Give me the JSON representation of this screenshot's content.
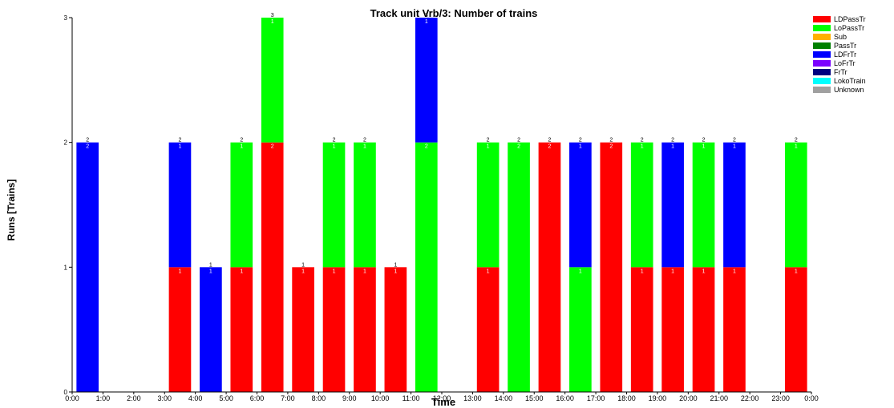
{
  "chart_data": {
    "type": "bar",
    "stacked": true,
    "title": "Track unit Vrb/3: Number of trains",
    "xlabel": "Time",
    "ylabel": "Runs [Trains]",
    "ylim": [
      0,
      3
    ],
    "yticks": [
      "0",
      "1",
      "2",
      "3"
    ],
    "grid": false,
    "legend_position": "top-right",
    "categories": [
      "0:00",
      "1:00",
      "2:00",
      "3:00",
      "4:00",
      "5:00",
      "6:00",
      "7:00",
      "8:00",
      "9:00",
      "10:00",
      "11:00",
      "12:00",
      "13:00",
      "14:00",
      "15:00",
      "16:00",
      "17:00",
      "18:00",
      "19:00",
      "20:00",
      "21:00",
      "22:00",
      "23:00"
    ],
    "xtick_labels": [
      "0:00",
      "1:00",
      "2:00",
      "3:00",
      "4:00",
      "5:00",
      "6:00",
      "7:00",
      "8:00",
      "9:00",
      "10:00",
      "11:00",
      "12:00",
      "13:00",
      "14:00",
      "15:00",
      "16:00",
      "17:00",
      "18:00",
      "19:00",
      "20:00",
      "21:00",
      "22:00",
      "23:00",
      "0:00"
    ],
    "series": [
      {
        "name": "LDPassTr",
        "color": "#ff0000",
        "values": [
          0,
          0,
          0,
          1,
          0,
          1,
          2,
          1,
          1,
          1,
          1,
          0,
          0,
          1,
          0,
          2,
          0,
          2,
          1,
          1,
          1,
          1,
          0,
          1
        ]
      },
      {
        "name": "LoPassTr",
        "color": "#00ff00",
        "values": [
          0,
          0,
          0,
          0,
          0,
          1,
          1,
          0,
          1,
          1,
          0,
          2,
          0,
          1,
          2,
          0,
          1,
          0,
          1,
          0,
          1,
          0,
          0,
          1
        ]
      },
      {
        "name": "Sub",
        "color": "#ffb000",
        "values": [
          0,
          0,
          0,
          0,
          0,
          0,
          0,
          0,
          0,
          0,
          0,
          0,
          0,
          0,
          0,
          0,
          0,
          0,
          0,
          0,
          0,
          0,
          0,
          0
        ]
      },
      {
        "name": "PassTr",
        "color": "#008000",
        "values": [
          0,
          0,
          0,
          0,
          0,
          0,
          0,
          0,
          0,
          0,
          0,
          0,
          0,
          0,
          0,
          0,
          0,
          0,
          0,
          0,
          0,
          0,
          0,
          0
        ]
      },
      {
        "name": "LDFrTr",
        "color": "#0000ff",
        "values": [
          2,
          0,
          0,
          1,
          1,
          0,
          0,
          0,
          0,
          0,
          0,
          1,
          0,
          0,
          0,
          0,
          1,
          0,
          0,
          1,
          0,
          1,
          0,
          0
        ]
      },
      {
        "name": "LoFrTr",
        "color": "#7b00ff",
        "values": [
          0,
          0,
          0,
          0,
          0,
          0,
          0,
          0,
          0,
          0,
          0,
          0,
          0,
          0,
          0,
          0,
          0,
          0,
          0,
          0,
          0,
          0,
          0,
          0
        ]
      },
      {
        "name": "FrTr",
        "color": "#000080",
        "values": [
          0,
          0,
          0,
          0,
          0,
          0,
          0,
          0,
          0,
          0,
          0,
          0,
          0,
          0,
          0,
          0,
          0,
          0,
          0,
          0,
          0,
          0,
          0,
          0
        ]
      },
      {
        "name": "LokoTrain",
        "color": "#00ffff",
        "values": [
          0,
          0,
          0,
          0,
          0,
          0,
          0,
          0,
          0,
          0,
          0,
          0,
          0,
          0,
          0,
          0,
          0,
          0,
          0,
          0,
          0,
          0,
          0,
          0
        ]
      },
      {
        "name": "Unknown",
        "color": "#a0a0a0",
        "values": [
          0,
          0,
          0,
          0,
          0,
          0,
          0,
          0,
          0,
          0,
          0,
          0,
          0,
          0,
          0,
          0,
          0,
          0,
          0,
          0,
          0,
          0,
          0,
          0
        ]
      }
    ],
    "totals": [
      2,
      0,
      0,
      2,
      1,
      2,
      3,
      1,
      2,
      2,
      1,
      3,
      0,
      2,
      2,
      2,
      2,
      2,
      2,
      2,
      2,
      2,
      0,
      2
    ]
  }
}
